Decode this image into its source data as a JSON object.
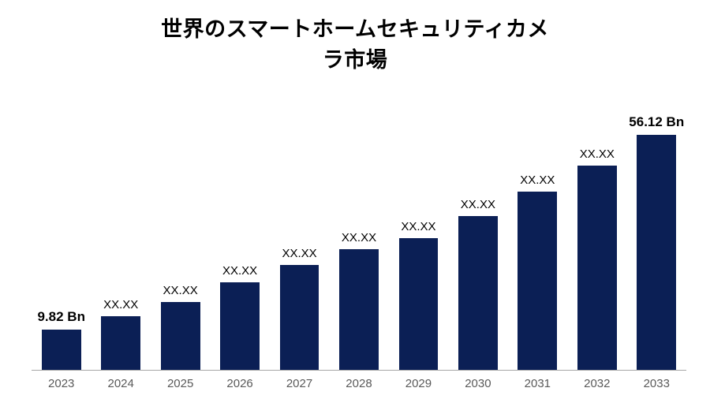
{
  "chart": {
    "type": "bar",
    "title_line1": "世界のスマートホームセキュリティカメ",
    "title_line2": "ラ市場",
    "title_fontsize": 27,
    "title_fontweight": 700,
    "title_color": "#000000",
    "background_color": "#ffffff",
    "bar_color": "#0b1f55",
    "baseline_color": "#a6a6a6",
    "xtick_color": "#595959",
    "xtick_fontsize": 15,
    "value_label_fontsize": 15,
    "bold_label_fontsize": 17,
    "bar_width_pct": 66,
    "ymax": 60,
    "categories": [
      "2023",
      "2024",
      "2025",
      "2026",
      "2027",
      "2028",
      "2029",
      "2030",
      "2031",
      "2032",
      "2033"
    ],
    "values": [
      9.82,
      12.9,
      16.3,
      21.0,
      25.2,
      28.8,
      31.5,
      36.8,
      42.5,
      48.8,
      56.12
    ],
    "value_labels": [
      "9.82 Bn",
      "XX.XX",
      "XX.XX",
      "XX.XX",
      "XX.XX",
      "XX.XX",
      "XX.XX",
      "XX.XX",
      "XX.XX",
      "XX.XX",
      "56.12 Bn"
    ],
    "value_label_bold": [
      true,
      false,
      false,
      false,
      false,
      false,
      false,
      false,
      false,
      false,
      true
    ]
  }
}
